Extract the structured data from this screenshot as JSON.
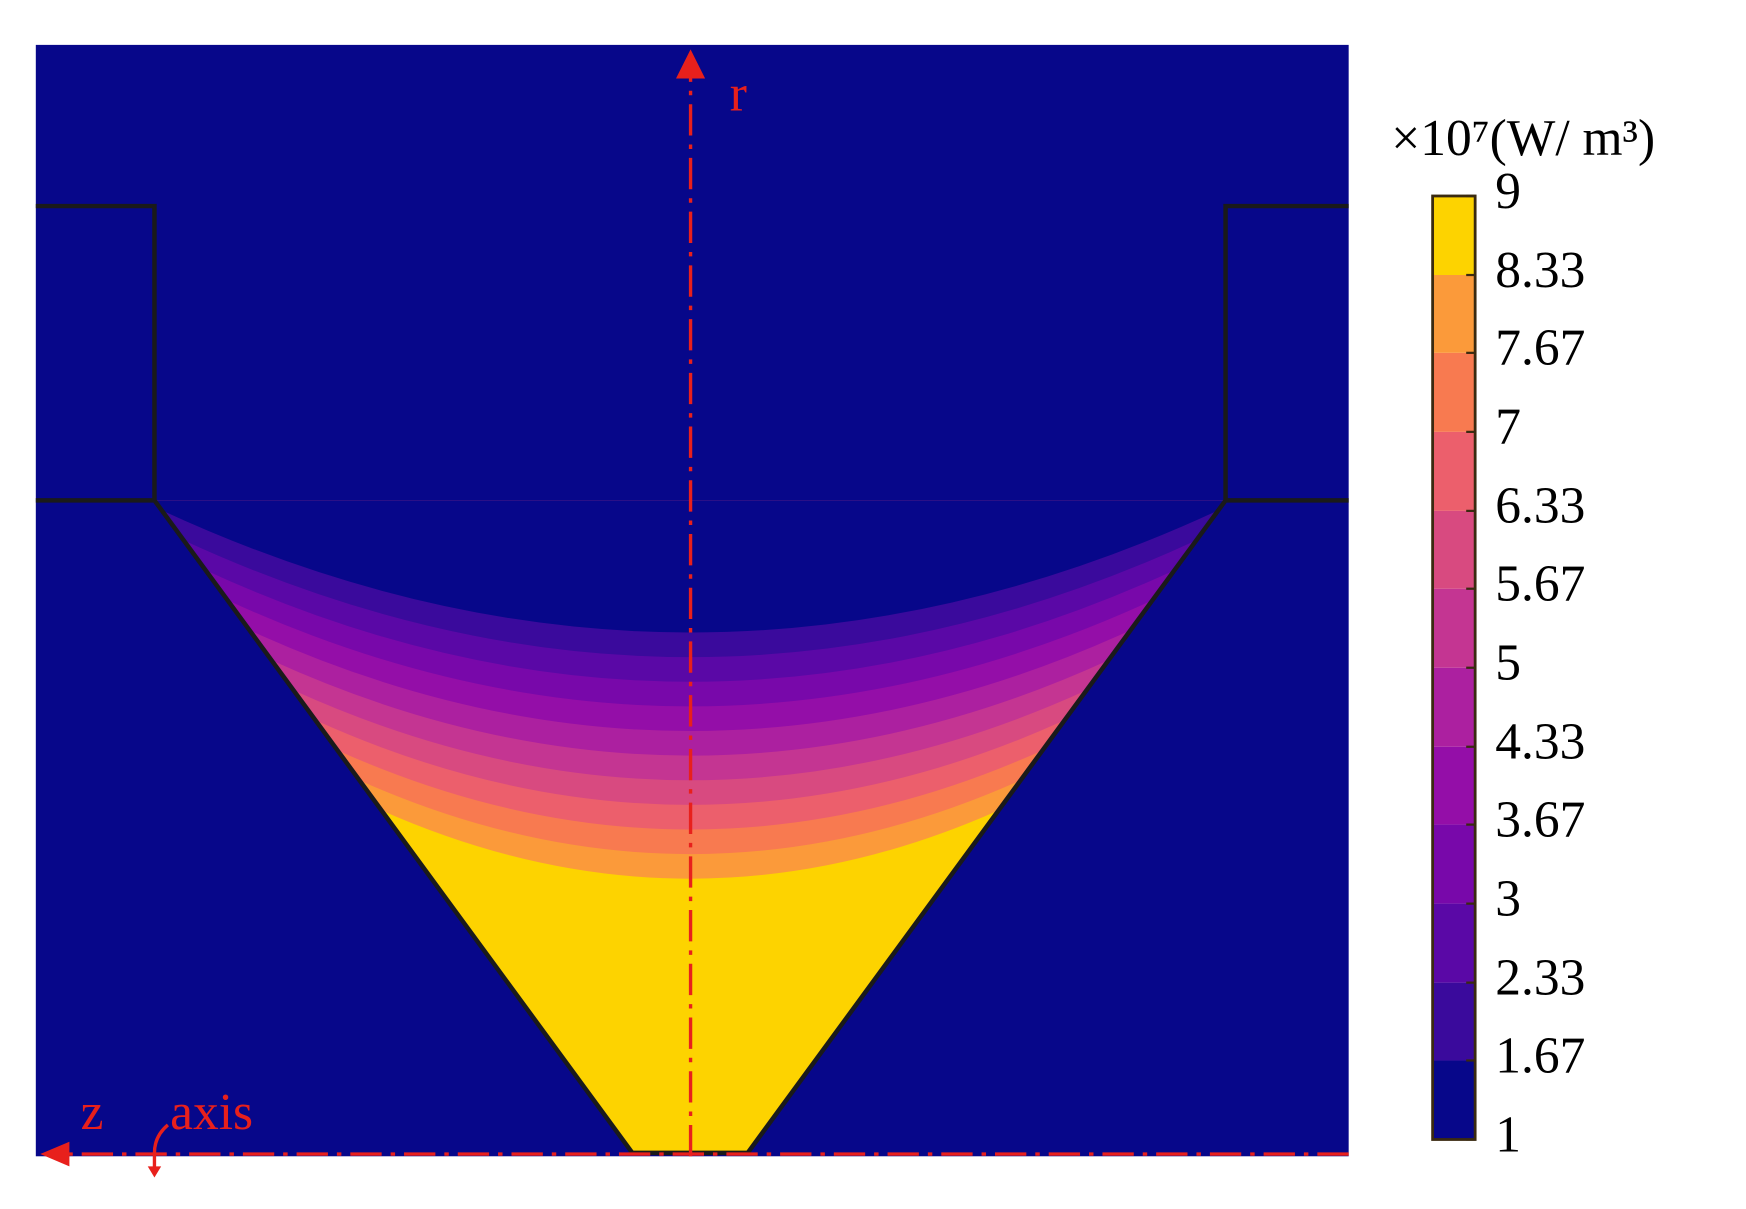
{
  "chart_data": {
    "type": "contour",
    "colorbar_label": "×10⁷(W/ m³)",
    "clim": [
      1,
      9
    ],
    "cticks": [
      1,
      1.67,
      2.33,
      3,
      3.67,
      4.33,
      5,
      5.67,
      6.33,
      7,
      7.67,
      8.33,
      9
    ],
    "colors": [
      "#07078a",
      "#3a0a9c",
      "#5a08a6",
      "#7808aa",
      "#940ea8",
      "#ac20a0",
      "#c43592",
      "#d84a80",
      "#ec5f6c",
      "#f87a50",
      "#fb9a3a",
      "#fdd300"
    ],
    "annotations": {
      "r_axis": "r",
      "z_axis": "z",
      "axis_label": "axis"
    }
  }
}
